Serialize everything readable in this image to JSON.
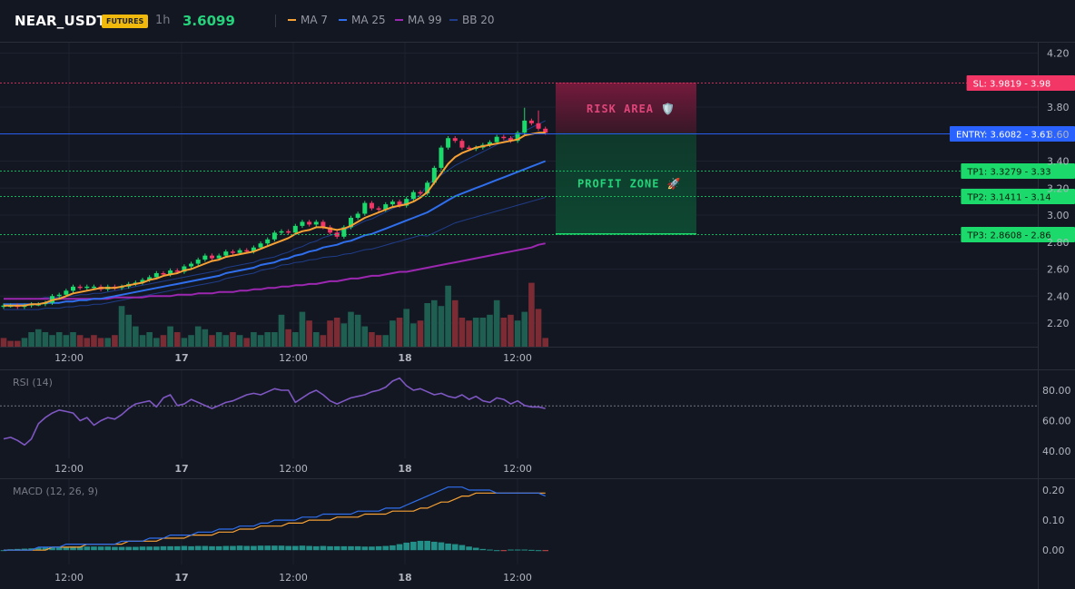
{
  "header": {
    "symbol": "NEAR_USDT",
    "market_badge": "FUTURES",
    "timeframe": "1h",
    "last_price": "3.6099",
    "legend": [
      {
        "label": "MA 7",
        "color": "#f7a134"
      },
      {
        "label": "MA 25",
        "color": "#2f6fed"
      },
      {
        "label": "MA 99",
        "color": "#9c27b0"
      },
      {
        "label": "BB 20",
        "color": "#1f3d8a"
      }
    ]
  },
  "panes": {
    "rsi_label": "RSI (14)",
    "macd_label": "MACD (12, 26, 9)"
  },
  "zones": {
    "risk_label": "RISK AREA 🛡️",
    "profit_label": "PROFIT ZONE 🚀"
  },
  "levels": [
    {
      "name": "sl",
      "text": "SL: 3.9819 - 3.98",
      "value": 3.9819,
      "kind": "sl",
      "color": "#f23665",
      "text_color": "#ffffff"
    },
    {
      "name": "entry",
      "text": "ENTRY: 3.6082 - 3.61",
      "value": 3.6082,
      "kind": "entry",
      "color": "#2962ff",
      "text_color": "#ffffff"
    },
    {
      "name": "tp1",
      "text": "TP1: 3.3279 - 3.33",
      "value": 3.3279,
      "kind": "tp",
      "color": "#1bd96a",
      "text_color": "#0b1a10"
    },
    {
      "name": "tp2",
      "text": "TP2: 3.1411 - 3.14",
      "value": 3.1411,
      "kind": "tp",
      "color": "#1bd96a",
      "text_color": "#0b1a10"
    },
    {
      "name": "tp3",
      "text": "TP3: 2.8608 - 2.86",
      "value": 2.8608,
      "kind": "tp",
      "color": "#1bd96a",
      "text_color": "#0b1a10"
    }
  ],
  "chart_data": [
    {
      "type": "candlestick",
      "pane": "price",
      "y_ticks": [
        "4.20",
        "3.80",
        "3.60",
        "3.40",
        "3.20",
        "3.00",
        "2.80",
        "2.60",
        "2.40",
        "2.20"
      ],
      "y_range": [
        2.1,
        4.2
      ],
      "x_ticks": [
        "12:00",
        "17",
        "12:00",
        "18",
        "12:00"
      ],
      "close": [
        2.33,
        2.33,
        2.32,
        2.33,
        2.34,
        2.34,
        2.35,
        2.4,
        2.41,
        2.44,
        2.47,
        2.46,
        2.47,
        2.47,
        2.45,
        2.47,
        2.46,
        2.47,
        2.49,
        2.5,
        2.52,
        2.54,
        2.57,
        2.56,
        2.59,
        2.58,
        2.62,
        2.64,
        2.67,
        2.7,
        2.68,
        2.7,
        2.73,
        2.72,
        2.74,
        2.73,
        2.76,
        2.79,
        2.82,
        2.87,
        2.88,
        2.87,
        2.92,
        2.95,
        2.93,
        2.95,
        2.91,
        2.87,
        2.84,
        2.91,
        2.98,
        3.01,
        3.09,
        3.05,
        3.04,
        3.08,
        3.1,
        3.07,
        3.12,
        3.17,
        3.16,
        3.24,
        3.35,
        3.5,
        3.57,
        3.55,
        3.5,
        3.49,
        3.5,
        3.52,
        3.54,
        3.58,
        3.57,
        3.55,
        3.61,
        3.7,
        3.68,
        3.64,
        3.61
      ],
      "volume": [
        3,
        2,
        2,
        3,
        5,
        6,
        5,
        4,
        5,
        4,
        5,
        4,
        3,
        4,
        3,
        3,
        4,
        14,
        11,
        7,
        4,
        5,
        3,
        4,
        7,
        5,
        3,
        4,
        7,
        6,
        4,
        5,
        4,
        5,
        4,
        3,
        5,
        4,
        5,
        5,
        11,
        6,
        5,
        12,
        9,
        5,
        4,
        9,
        10,
        8,
        12,
        11,
        7,
        5,
        4,
        4,
        9,
        10,
        13,
        8,
        9,
        15,
        16,
        14,
        21,
        16,
        10,
        9,
        10,
        10,
        11,
        16,
        10,
        11,
        9,
        12,
        22,
        13,
        3
      ],
      "volume_dir": [
        -1,
        -1,
        -1,
        1,
        1,
        1,
        1,
        1,
        1,
        1,
        1,
        -1,
        -1,
        -1,
        -1,
        1,
        -1,
        1,
        1,
        1,
        1,
        1,
        1,
        -1,
        1,
        -1,
        1,
        1,
        1,
        1,
        -1,
        1,
        1,
        -1,
        1,
        -1,
        1,
        1,
        1,
        1,
        1,
        -1,
        1,
        1,
        -1,
        1,
        -1,
        -1,
        -1,
        1,
        1,
        1,
        1,
        -1,
        -1,
        1,
        1,
        -1,
        1,
        1,
        -1,
        1,
        1,
        1,
        1,
        -1,
        -1,
        -1,
        1,
        1,
        1,
        1,
        -1,
        -1,
        1,
        1,
        -1,
        -1,
        -1
      ],
      "series": [
        {
          "name": "MA 7",
          "values": [
            2.33,
            2.33,
            2.33,
            2.33,
            2.34,
            2.34,
            2.35,
            2.37,
            2.38,
            2.4,
            2.42,
            2.43,
            2.44,
            2.45,
            2.46,
            2.46,
            2.46,
            2.47,
            2.48,
            2.49,
            2.5,
            2.52,
            2.53,
            2.55,
            2.56,
            2.57,
            2.59,
            2.6,
            2.62,
            2.64,
            2.66,
            2.67,
            2.69,
            2.7,
            2.71,
            2.72,
            2.73,
            2.75,
            2.77,
            2.79,
            2.81,
            2.83,
            2.86,
            2.88,
            2.89,
            2.91,
            2.91,
            2.9,
            2.89,
            2.9,
            2.92,
            2.95,
            2.98,
            3.0,
            3.02,
            3.04,
            3.06,
            3.07,
            3.08,
            3.1,
            3.13,
            3.17,
            3.24,
            3.31,
            3.38,
            3.43,
            3.46,
            3.48,
            3.5,
            3.51,
            3.52,
            3.53,
            3.54,
            3.55,
            3.56,
            3.59,
            3.6,
            3.61,
            3.61
          ]
        },
        {
          "name": "MA 25",
          "values": [
            2.34,
            2.34,
            2.34,
            2.34,
            2.34,
            2.34,
            2.35,
            2.35,
            2.35,
            2.36,
            2.36,
            2.37,
            2.37,
            2.38,
            2.38,
            2.39,
            2.4,
            2.41,
            2.42,
            2.43,
            2.44,
            2.45,
            2.46,
            2.47,
            2.48,
            2.49,
            2.5,
            2.51,
            2.52,
            2.53,
            2.54,
            2.55,
            2.57,
            2.58,
            2.59,
            2.6,
            2.61,
            2.63,
            2.64,
            2.65,
            2.67,
            2.68,
            2.7,
            2.71,
            2.73,
            2.74,
            2.76,
            2.77,
            2.78,
            2.8,
            2.81,
            2.83,
            2.85,
            2.86,
            2.88,
            2.9,
            2.92,
            2.94,
            2.96,
            2.98,
            3.0,
            3.02,
            3.05,
            3.08,
            3.11,
            3.14,
            3.16,
            3.18,
            3.2,
            3.22,
            3.24,
            3.26,
            3.28,
            3.3,
            3.32,
            3.34,
            3.36,
            3.38,
            3.4
          ]
        },
        {
          "name": "MA 99",
          "values": [
            2.38,
            2.38,
            2.38,
            2.38,
            2.38,
            2.38,
            2.38,
            2.38,
            2.38,
            2.38,
            2.38,
            2.38,
            2.38,
            2.38,
            2.38,
            2.38,
            2.39,
            2.39,
            2.39,
            2.39,
            2.39,
            2.4,
            2.4,
            2.4,
            2.4,
            2.41,
            2.41,
            2.41,
            2.42,
            2.42,
            2.42,
            2.43,
            2.43,
            2.43,
            2.44,
            2.44,
            2.45,
            2.45,
            2.46,
            2.46,
            2.47,
            2.47,
            2.48,
            2.48,
            2.49,
            2.49,
            2.5,
            2.51,
            2.51,
            2.52,
            2.53,
            2.53,
            2.54,
            2.55,
            2.55,
            2.56,
            2.57,
            2.58,
            2.58,
            2.59,
            2.6,
            2.61,
            2.62,
            2.63,
            2.64,
            2.65,
            2.66,
            2.67,
            2.68,
            2.69,
            2.7,
            2.71,
            2.72,
            2.73,
            2.74,
            2.75,
            2.76,
            2.78,
            2.79
          ]
        }
      ]
    },
    {
      "type": "line",
      "pane": "rsi",
      "title": "RSI (14)",
      "y_ticks": [
        "80.00",
        "60.00",
        "40.00"
      ],
      "y_range": [
        36,
        94
      ],
      "reference_line": 70,
      "series": [
        {
          "name": "RSI (14)",
          "values": [
            48,
            49,
            47,
            44,
            48,
            58,
            62,
            65,
            67,
            66,
            65,
            60,
            62,
            57,
            60,
            62,
            61,
            64,
            68,
            71,
            72,
            73,
            69,
            75,
            77,
            70,
            71,
            74,
            72,
            70,
            68,
            70,
            72,
            73,
            75,
            77,
            78,
            77,
            79,
            81,
            80,
            80,
            72,
            75,
            78,
            80,
            77,
            73,
            71,
            73,
            75,
            76,
            77,
            79,
            80,
            82,
            86,
            88,
            83,
            80,
            81,
            79,
            77,
            78,
            76,
            75,
            77,
            74,
            76,
            73,
            72,
            75,
            74,
            71,
            73,
            70,
            69,
            69,
            68
          ]
        }
      ]
    },
    {
      "type": "line",
      "pane": "macd",
      "title": "MACD (12, 26, 9)",
      "y_ticks": [
        "0.20",
        "0.10",
        "0.00"
      ],
      "y_range": [
        -0.04,
        0.23
      ],
      "series": [
        {
          "name": "MACD",
          "color": "#2f6fed",
          "values": [
            0.0,
            0.0,
            0.0,
            0.0,
            0.0,
            0.01,
            0.01,
            0.01,
            0.01,
            0.02,
            0.02,
            0.02,
            0.02,
            0.02,
            0.02,
            0.02,
            0.02,
            0.03,
            0.03,
            0.03,
            0.03,
            0.04,
            0.04,
            0.04,
            0.05,
            0.05,
            0.05,
            0.05,
            0.06,
            0.06,
            0.06,
            0.07,
            0.07,
            0.07,
            0.08,
            0.08,
            0.08,
            0.09,
            0.09,
            0.1,
            0.1,
            0.1,
            0.1,
            0.11,
            0.11,
            0.11,
            0.12,
            0.12,
            0.12,
            0.12,
            0.12,
            0.13,
            0.13,
            0.13,
            0.13,
            0.14,
            0.14,
            0.14,
            0.15,
            0.16,
            0.17,
            0.18,
            0.19,
            0.2,
            0.21,
            0.21,
            0.21,
            0.2,
            0.2,
            0.2,
            0.2,
            0.19,
            0.19,
            0.19,
            0.19,
            0.19,
            0.19,
            0.19,
            0.18
          ]
        },
        {
          "name": "Signal",
          "color": "#f7a134",
          "values": [
            0.0,
            0.0,
            0.0,
            0.0,
            0.0,
            0.0,
            0.0,
            0.01,
            0.01,
            0.01,
            0.01,
            0.01,
            0.02,
            0.02,
            0.02,
            0.02,
            0.02,
            0.02,
            0.03,
            0.03,
            0.03,
            0.03,
            0.03,
            0.04,
            0.04,
            0.04,
            0.04,
            0.05,
            0.05,
            0.05,
            0.05,
            0.06,
            0.06,
            0.06,
            0.07,
            0.07,
            0.07,
            0.08,
            0.08,
            0.08,
            0.08,
            0.09,
            0.09,
            0.09,
            0.1,
            0.1,
            0.1,
            0.1,
            0.11,
            0.11,
            0.11,
            0.11,
            0.12,
            0.12,
            0.12,
            0.12,
            0.13,
            0.13,
            0.13,
            0.13,
            0.14,
            0.14,
            0.15,
            0.16,
            0.16,
            0.17,
            0.18,
            0.18,
            0.19,
            0.19,
            0.19,
            0.19,
            0.19,
            0.19,
            0.19,
            0.19,
            0.19,
            0.19,
            0.19
          ]
        },
        {
          "name": "Histogram",
          "type": "bar",
          "values": [
            0.0,
            0.003,
            0.004,
            0.005,
            0.006,
            0.008,
            0.009,
            0.01,
            0.01,
            0.011,
            0.012,
            0.012,
            0.012,
            0.012,
            0.012,
            0.012,
            0.011,
            0.011,
            0.011,
            0.011,
            0.012,
            0.012,
            0.012,
            0.013,
            0.013,
            0.013,
            0.014,
            0.013,
            0.014,
            0.014,
            0.013,
            0.013,
            0.014,
            0.014,
            0.015,
            0.014,
            0.014,
            0.015,
            0.015,
            0.015,
            0.015,
            0.014,
            0.014,
            0.015,
            0.014,
            0.013,
            0.014,
            0.013,
            0.013,
            0.013,
            0.013,
            0.013,
            0.012,
            0.012,
            0.013,
            0.014,
            0.016,
            0.02,
            0.025,
            0.028,
            0.031,
            0.031,
            0.028,
            0.026,
            0.022,
            0.02,
            0.017,
            0.012,
            0.008,
            0.004,
            0.002,
            0.0,
            -0.002,
            0.002,
            0.002,
            0.002,
            0.001,
            0.0,
            -0.003
          ]
        }
      ]
    }
  ]
}
